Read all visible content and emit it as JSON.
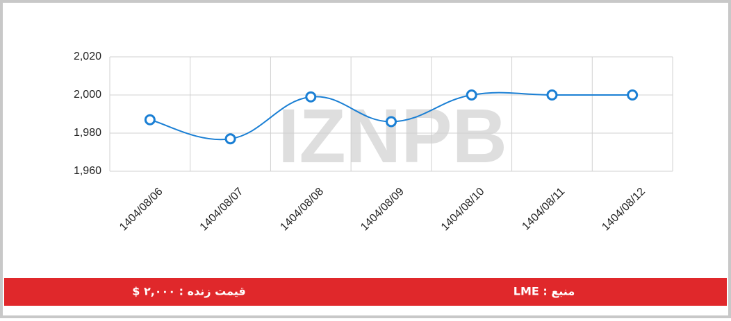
{
  "chart_data": {
    "type": "line",
    "categories": [
      "1404/08/06",
      "1404/08/07",
      "1404/08/08",
      "1404/08/09",
      "1404/08/10",
      "1404/08/11",
      "1404/08/12"
    ],
    "series": [
      {
        "name": "LME",
        "color": "#1a7fd4",
        "values": [
          1987,
          1977,
          1999,
          1986,
          2000,
          2000,
          2000
        ]
      }
    ],
    "ylim": [
      1960,
      2020
    ],
    "yticks": [
      {
        "value": 1960,
        "label": "1,960"
      },
      {
        "value": 1980,
        "label": "1,980"
      },
      {
        "value": 2000,
        "label": "2,000"
      },
      {
        "value": 2020,
        "label": "2,020"
      }
    ],
    "grid": true
  },
  "watermark": "IZNPB",
  "footer": {
    "price": "قیمت زنده : ۲,۰۰۰ $",
    "source": "منبع : LME"
  }
}
